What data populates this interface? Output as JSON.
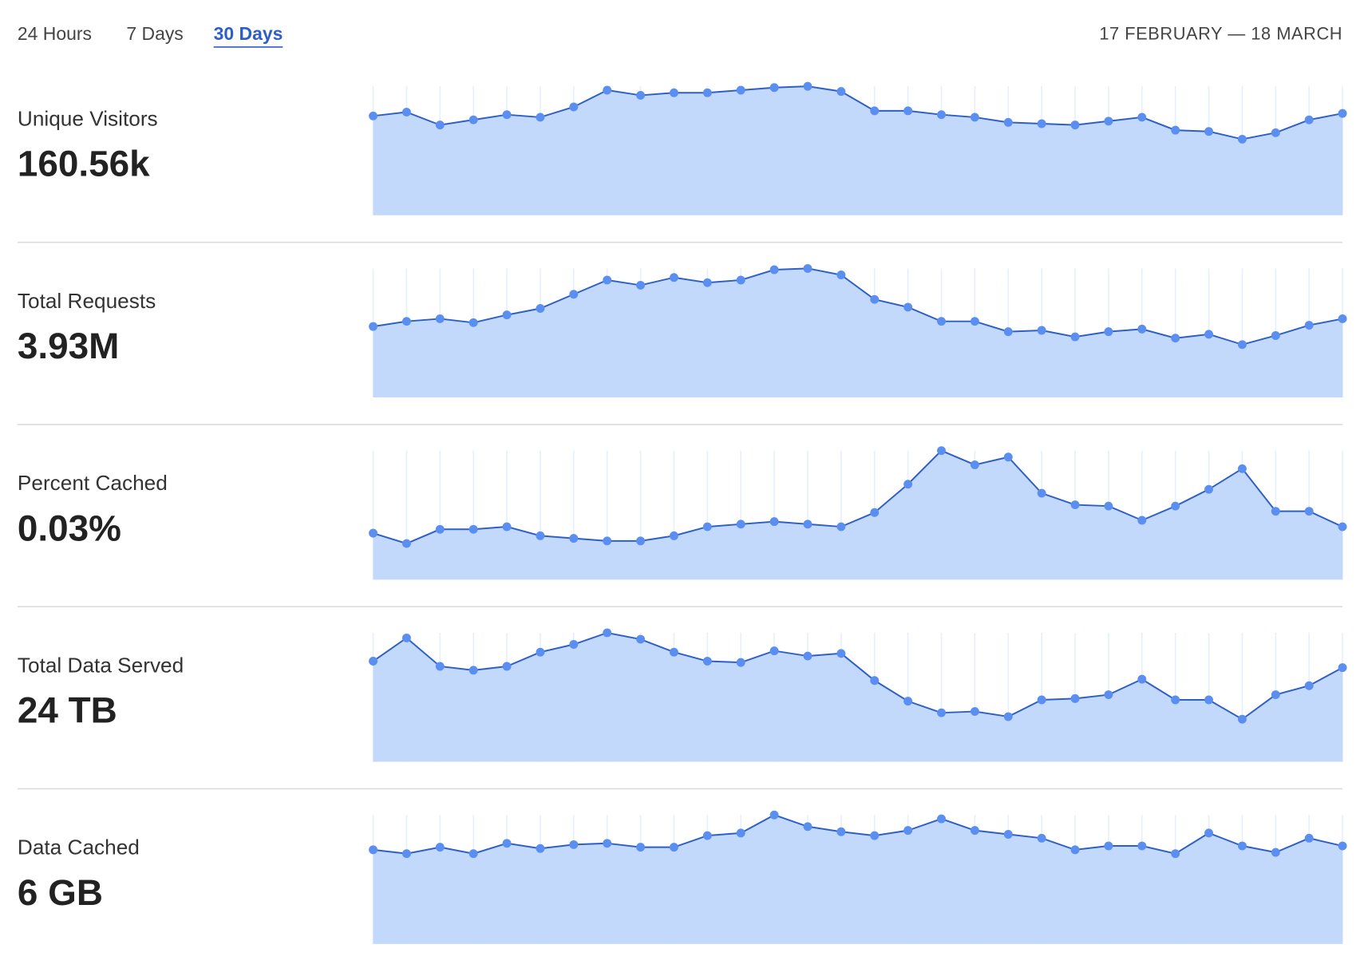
{
  "tabs": [
    "24 Hours",
    "7 Days",
    "30 Days"
  ],
  "active_tab": 2,
  "date_range": "17 FEBRUARY — 18 MARCH",
  "chart_data": [
    {
      "type": "area",
      "title": "Unique Visitors",
      "summary": "160.56k",
      "ylim": [
        0,
        100
      ],
      "color": "#2d5fc7",
      "point_color": "#5a8ef0",
      "fill": "#c2d9fb",
      "values": [
        77,
        80,
        70,
        74,
        78,
        76,
        84,
        97,
        93,
        95,
        95,
        97,
        99,
        100,
        96,
        81,
        81,
        78,
        76,
        72,
        71,
        70,
        73,
        76,
        66,
        65,
        59,
        64,
        74,
        79
      ]
    },
    {
      "type": "area",
      "title": "Total Requests",
      "summary": "3.93M",
      "ylim": [
        0,
        100
      ],
      "color": "#2d5fc7",
      "point_color": "#5a8ef0",
      "fill": "#c2d9fb",
      "values": [
        55,
        59,
        61,
        58,
        64,
        69,
        80,
        91,
        87,
        93,
        89,
        91,
        99,
        100,
        95,
        76,
        70,
        59,
        59,
        51,
        52,
        47,
        51,
        53,
        46,
        49,
        41,
        48,
        56,
        61
      ]
    },
    {
      "type": "area",
      "title": "Percent Cached",
      "summary": "0.03%",
      "ylim": [
        0,
        100
      ],
      "color": "#2d5fc7",
      "point_color": "#5a8ef0",
      "fill": "#c2d9fb",
      "values": [
        36,
        28,
        39,
        39,
        41,
        34,
        32,
        30,
        30,
        34,
        41,
        43,
        45,
        43,
        41,
        52,
        74,
        100,
        89,
        95,
        67,
        58,
        57,
        46,
        57,
        70,
        86,
        53,
        53,
        41
      ]
    },
    {
      "type": "area",
      "title": "Total Data Served",
      "summary": "24 TB",
      "ylim": [
        0,
        100
      ],
      "color": "#2d5fc7",
      "point_color": "#5a8ef0",
      "fill": "#c2d9fb",
      "values": [
        78,
        96,
        74,
        71,
        74,
        85,
        91,
        100,
        95,
        85,
        78,
        77,
        86,
        82,
        84,
        63,
        47,
        38,
        39,
        35,
        48,
        49,
        52,
        64,
        48,
        48,
        33,
        52,
        59,
        73
      ]
    },
    {
      "type": "area",
      "title": "Data Cached",
      "summary": "6 GB",
      "ylim": [
        0,
        100
      ],
      "color": "#2d5fc7",
      "point_color": "#5a8ef0",
      "fill": "#c2d9fb",
      "values": [
        73,
        70,
        75,
        70,
        78,
        74,
        77,
        78,
        75,
        75,
        84,
        86,
        100,
        91,
        87,
        84,
        88,
        97,
        88,
        85,
        82,
        73,
        76,
        76,
        70,
        86,
        76,
        71,
        82,
        76
      ]
    }
  ]
}
